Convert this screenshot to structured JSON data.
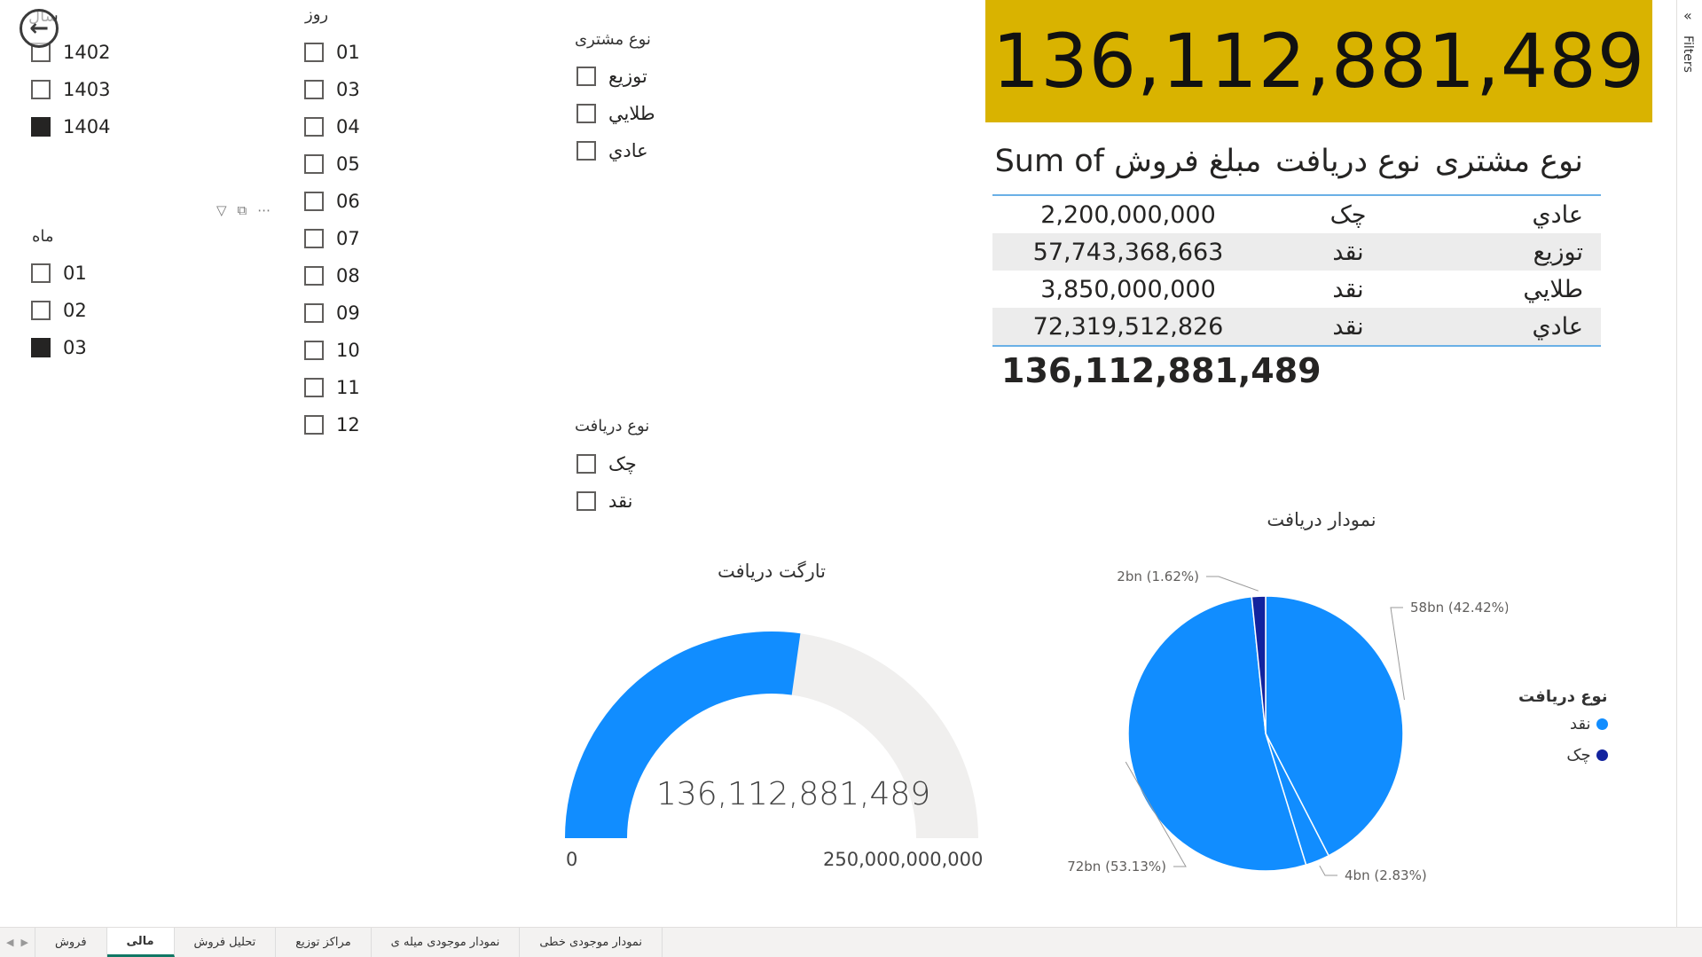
{
  "slicers": {
    "year": {
      "title": "سال",
      "items": [
        {
          "label": "1402",
          "checked": false
        },
        {
          "label": "1403",
          "checked": false
        },
        {
          "label": "1404",
          "checked": true
        }
      ]
    },
    "month": {
      "title": "ماه",
      "items": [
        {
          "label": "01",
          "checked": false
        },
        {
          "label": "02",
          "checked": false
        },
        {
          "label": "03",
          "checked": true
        }
      ]
    },
    "day": {
      "title": "روز",
      "items": [
        {
          "label": "01"
        },
        {
          "label": "03"
        },
        {
          "label": "04"
        },
        {
          "label": "05"
        },
        {
          "label": "06"
        },
        {
          "label": "07"
        },
        {
          "label": "08"
        },
        {
          "label": "09"
        },
        {
          "label": "10"
        },
        {
          "label": "11"
        },
        {
          "label": "12"
        }
      ]
    },
    "customer_type": {
      "title": "نوع مشتری",
      "items": [
        {
          "label": "توزیع"
        },
        {
          "label": "طلايي"
        },
        {
          "label": "عادي"
        }
      ]
    },
    "receipt_type": {
      "title": "نوع دریافت",
      "items": [
        {
          "label": "چک"
        },
        {
          "label": "نقد"
        }
      ]
    }
  },
  "kpi": {
    "value": "136,112,881,489"
  },
  "table": {
    "headers": {
      "customer_type": "نوع مشتری",
      "receipt_type": "نوع دریافت",
      "sum": "Sum of مبلغ فروش"
    },
    "rows": [
      {
        "customer_type": "عادي",
        "receipt_type": "چک",
        "sum": "2,200,000,000"
      },
      {
        "customer_type": "توزیع",
        "receipt_type": "نقد",
        "sum": "57,743,368,663"
      },
      {
        "customer_type": "طلايي",
        "receipt_type": "نقد",
        "sum": "3,850,000,000"
      },
      {
        "customer_type": "عادي",
        "receipt_type": "نقد",
        "sum": "72,319,512,826"
      }
    ],
    "total": "136,112,881,489"
  },
  "gauge": {
    "title": "تارگت دریافت",
    "value_label": "136,112,881,489",
    "min_label": "0",
    "max_label": "250,000,000,000",
    "value": 136112881489,
    "min": 0,
    "max": 250000000000,
    "fill_color": "#118dff",
    "track_color": "#f0efee"
  },
  "chart_data": {
    "type": "pie",
    "title": "نمودار دریافت",
    "legend_title": "نوع دریافت",
    "legend_position": "right",
    "slices": [
      {
        "label": "58bn (42.42%)",
        "value": 57.74,
        "percent": 42.42,
        "category": "نقد",
        "color": "#118dff"
      },
      {
        "label": "4bn (2.83%)",
        "value": 3.85,
        "percent": 2.83,
        "category": "نقد",
        "color": "#118dff"
      },
      {
        "label": "72bn (53.13%)",
        "value": 72.32,
        "percent": 53.13,
        "category": "نقد",
        "color": "#118dff"
      },
      {
        "label": "2bn (1.62%)",
        "value": 2.2,
        "percent": 1.62,
        "category": "چک",
        "color": "#12239e"
      }
    ],
    "legend": [
      {
        "label": "نقد",
        "color": "#118dff"
      },
      {
        "label": "چک",
        "color": "#12239e"
      }
    ]
  },
  "filters_pane": {
    "label": "Filters",
    "chevron": "«"
  },
  "tabs": [
    {
      "label": "فروش",
      "active": false
    },
    {
      "label": "مالی",
      "active": true
    },
    {
      "label": "تحلیل فروش",
      "active": false
    },
    {
      "label": "مراکز توزیع",
      "active": false
    },
    {
      "label": "نمودار موجودی میله ی",
      "active": false
    },
    {
      "label": "نمودار موجودی خطی",
      "active": false
    }
  ],
  "icons": {
    "back": "back-arrow-icon",
    "filter": "filter-icon",
    "focus": "focus-mode-icon",
    "more": "more-options-icon"
  }
}
